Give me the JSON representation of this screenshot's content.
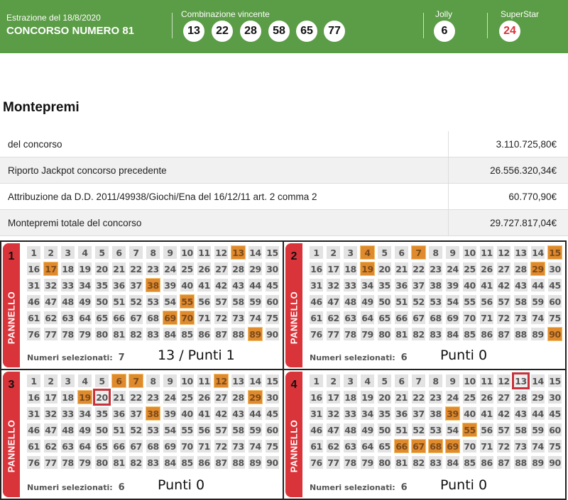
{
  "header": {
    "date": "Estrazione del 18/8/2020",
    "title": "CONCORSO NUMERO 81",
    "combination_label": "Combinazione vincente",
    "numbers": [
      "13",
      "22",
      "28",
      "58",
      "65",
      "77"
    ],
    "jolly_label": "Jolly",
    "jolly": "6",
    "superstar_label": "SuperStar",
    "superstar": "24",
    "colors": {
      "background": "#5b9c46",
      "superstar": "#d9343a"
    }
  },
  "montepremi": {
    "title": "Montepremi",
    "rows": [
      {
        "label": "del concorso",
        "value": "3.110.725,80€"
      },
      {
        "label": "Riporto Jackpot concorso precedente",
        "value": "26.556.320,34€"
      },
      {
        "label": "Attribuzione da D.D. 2011/49938/Giochi/Ena del 16/12/11 art. 2 comma 2",
        "value": "60.770,90€"
      },
      {
        "label": "Montepremi totale del concorso",
        "value": "29.727.817,04€"
      }
    ]
  },
  "panels": [
    {
      "number": "1",
      "tab_label": "PANNELLO",
      "selected": [
        13,
        17,
        38,
        55,
        69,
        70,
        89
      ],
      "highlighted": [],
      "count_label": "Numeri selezionati:",
      "count": "7",
      "result": "13 / Punti 1"
    },
    {
      "number": "2",
      "tab_label": "PANNELLO",
      "selected": [
        4,
        7,
        15,
        19,
        29,
        90
      ],
      "highlighted": [],
      "count_label": "Numeri selezionati:",
      "count": "6",
      "result": "Punti 0"
    },
    {
      "number": "3",
      "tab_label": "PANNELLO",
      "selected": [
        6,
        7,
        12,
        19,
        29,
        38
      ],
      "highlighted": [
        20
      ],
      "count_label": "Numeri selezionati:",
      "count": "6",
      "result": "Punti 0"
    },
    {
      "number": "4",
      "tab_label": "PANNELLO",
      "selected": [
        39,
        55,
        66,
        67,
        68,
        69
      ],
      "highlighted": [
        13
      ],
      "count_label": "Numeri selezionati:",
      "count": "6",
      "result": "Punti 0"
    }
  ],
  "colors": {
    "selected": "#e08a2e",
    "highlight_border": "#c8323a",
    "tab": "#d9343a"
  }
}
